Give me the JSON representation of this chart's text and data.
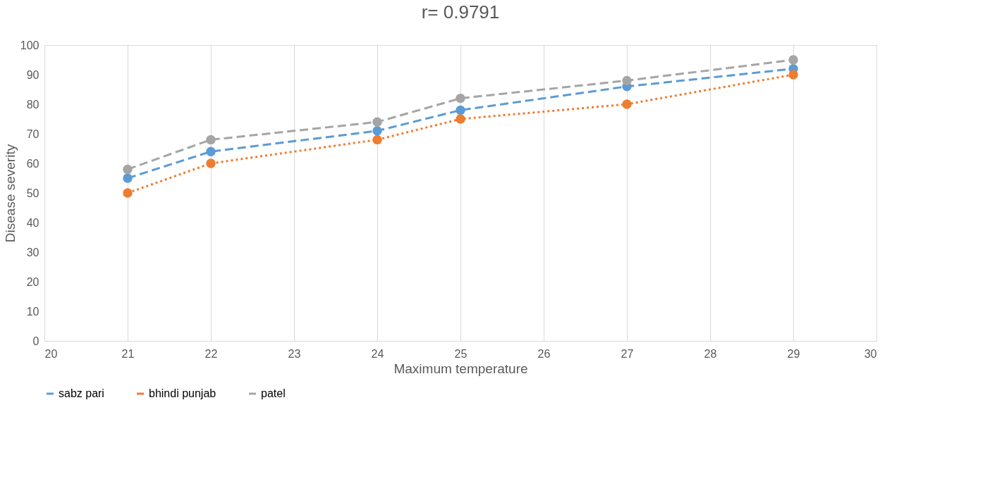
{
  "chart_data": {
    "type": "line",
    "title": "r= 0.9791",
    "xlabel": "Maximum temperature",
    "ylabel": "Disease severity",
    "x": [
      21,
      22,
      24,
      25,
      27,
      29
    ],
    "series": [
      {
        "name": "sabz pari",
        "color": "#5b9bd5",
        "line_style": "dashed",
        "values": [
          55,
          64,
          71,
          78,
          86,
          92
        ]
      },
      {
        "name": "bhindi punjab",
        "color": "#ed7d31",
        "line_style": "dotted",
        "values": [
          50,
          60,
          68,
          75,
          80,
          90
        ]
      },
      {
        "name": "patel",
        "color": "#a5a5a5",
        "line_style": "dashed",
        "values": [
          58,
          68,
          74,
          82,
          88,
          95
        ]
      }
    ],
    "xlim": [
      20,
      30
    ],
    "xticks": [
      20,
      21,
      22,
      23,
      24,
      25,
      26,
      27,
      28,
      29,
      30
    ],
    "ylim": [
      0,
      100
    ],
    "yticks": [
      0,
      10,
      20,
      30,
      40,
      50,
      60,
      70,
      80,
      90,
      100
    ],
    "grid": "x",
    "legend": "bottom",
    "marker": "circle"
  }
}
